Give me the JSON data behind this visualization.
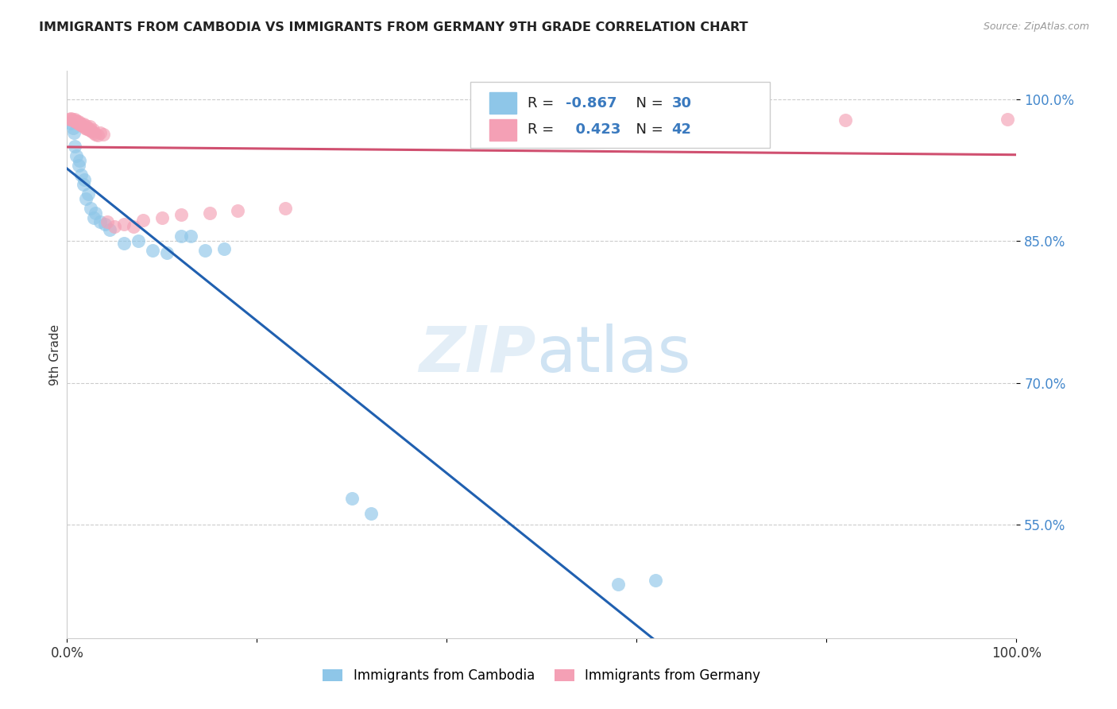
{
  "title": "IMMIGRANTS FROM CAMBODIA VS IMMIGRANTS FROM GERMANY 9TH GRADE CORRELATION CHART",
  "source": "Source: ZipAtlas.com",
  "ylabel": "9th Grade",
  "legend_labels": [
    "Immigrants from Cambodia",
    "Immigrants from Germany"
  ],
  "R_cambodia": -0.867,
  "N_cambodia": 30,
  "R_germany": 0.423,
  "N_germany": 42,
  "xlim": [
    0.0,
    1.0
  ],
  "ylim": [
    0.43,
    1.03
  ],
  "yticks": [
    0.55,
    0.7,
    0.85,
    1.0
  ],
  "ytick_labels": [
    "55.0%",
    "70.0%",
    "85.0%",
    "100.0%"
  ],
  "watermark_zip": "ZIP",
  "watermark_atlas": "atlas",
  "color_cambodia": "#8ec6e8",
  "color_germany": "#f4a0b5",
  "line_color_cambodia": "#2060b0",
  "line_color_germany": "#d05070",
  "background_color": "#ffffff",
  "title_color": "#222222",
  "grid_color": "#cccccc",
  "cambodia_x": [
    0.004,
    0.006,
    0.007,
    0.008,
    0.01,
    0.012,
    0.013,
    0.015,
    0.017,
    0.018,
    0.02,
    0.022,
    0.025,
    0.028,
    0.03,
    0.035,
    0.04,
    0.045,
    0.06,
    0.075,
    0.09,
    0.105,
    0.12,
    0.13,
    0.145,
    0.165,
    0.3,
    0.32,
    0.58,
    0.62
  ],
  "cambodia_y": [
    0.975,
    0.97,
    0.965,
    0.95,
    0.94,
    0.93,
    0.935,
    0.92,
    0.91,
    0.915,
    0.895,
    0.9,
    0.885,
    0.875,
    0.88,
    0.87,
    0.868,
    0.862,
    0.848,
    0.85,
    0.84,
    0.838,
    0.855,
    0.855,
    0.84,
    0.842,
    0.578,
    0.562,
    0.487,
    0.491
  ],
  "germany_x": [
    0.002,
    0.004,
    0.005,
    0.006,
    0.007,
    0.008,
    0.009,
    0.01,
    0.011,
    0.012,
    0.013,
    0.014,
    0.015,
    0.016,
    0.017,
    0.018,
    0.019,
    0.02,
    0.021,
    0.022,
    0.023,
    0.024,
    0.025,
    0.026,
    0.027,
    0.028,
    0.03,
    0.032,
    0.035,
    0.038,
    0.042,
    0.05,
    0.06,
    0.07,
    0.08,
    0.1,
    0.12,
    0.15,
    0.18,
    0.23,
    0.82,
    0.99
  ],
  "germany_y": [
    0.979,
    0.98,
    0.979,
    0.978,
    0.977,
    0.979,
    0.976,
    0.977,
    0.975,
    0.976,
    0.974,
    0.975,
    0.973,
    0.972,
    0.974,
    0.971,
    0.97,
    0.972,
    0.969,
    0.97,
    0.968,
    0.971,
    0.967,
    0.966,
    0.968,
    0.965,
    0.963,
    0.962,
    0.965,
    0.963,
    0.87,
    0.865,
    0.868,
    0.865,
    0.872,
    0.875,
    0.878,
    0.88,
    0.882,
    0.885,
    0.978,
    0.979
  ]
}
